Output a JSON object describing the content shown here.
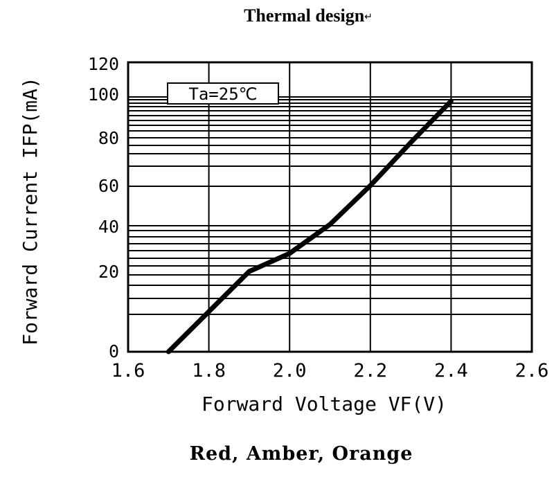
{
  "page": {
    "title": "Thermal design",
    "title_mark": "↵",
    "caption": "Red, Amber, Orange"
  },
  "chart_data": {
    "type": "line",
    "xlabel": "Forward Voltage VF(V)",
    "ylabel": "Forward Current IFP(mA)",
    "annotation": "Ta=25℃",
    "x_ticks": [
      "1.6",
      "1.8",
      "2.0",
      "2.2",
      "2.4",
      "2.6"
    ],
    "y_ticks": [
      "0",
      "20",
      "40",
      "60",
      "80",
      "100",
      "120"
    ],
    "xlim": [
      1.6,
      2.6
    ],
    "grid": true,
    "line_color": "#000000",
    "series": [
      {
        "x": [
          1.7,
          1.8,
          1.9,
          2.0,
          2.1,
          2.2,
          2.3,
          2.4
        ],
        "y": [
          0,
          10,
          20,
          28,
          41,
          60,
          78,
          98
        ]
      }
    ]
  }
}
